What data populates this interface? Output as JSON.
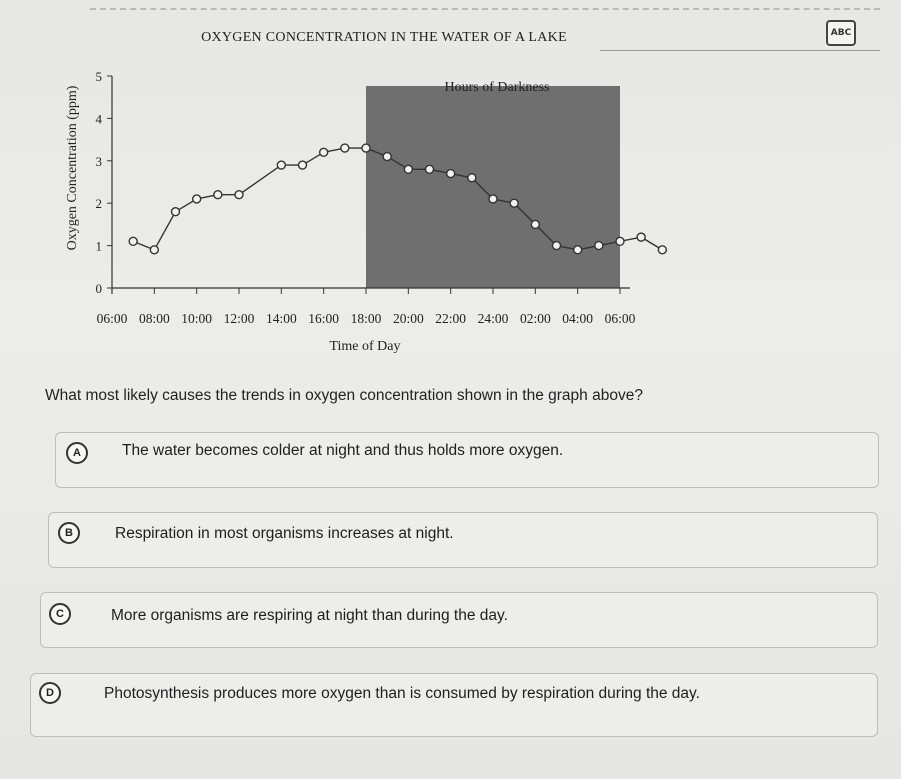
{
  "icons": {
    "abc": "abc-icon"
  },
  "abc_label": "ABC",
  "chart_data": {
    "type": "line",
    "title": "OXYGEN CONCENTRATION IN THE WATER OF A LAKE",
    "xlabel": "Time of Day",
    "ylabel": "Oxygen Concentration (ppm)",
    "shaded_label": "Hours of Darkness",
    "shaded_range": [
      "18:00",
      "06:00"
    ],
    "x_ticks": [
      "06:00",
      "08:00",
      "10:00",
      "12:00",
      "14:00",
      "16:00",
      "18:00",
      "20:00",
      "22:00",
      "24:00",
      "02:00",
      "04:00",
      "06:00"
    ],
    "y_ticks": [
      "0",
      "1",
      "2",
      "3",
      "4",
      "5"
    ],
    "ylim": [
      0,
      5
    ],
    "x_hours": [
      7,
      8,
      9,
      10,
      11,
      12,
      14,
      15,
      16,
      17,
      18,
      19,
      20,
      21,
      22,
      23,
      24,
      25,
      26,
      27,
      28,
      29,
      30,
      31,
      32
    ],
    "y": [
      1.1,
      0.9,
      1.8,
      2.1,
      2.2,
      2.2,
      2.9,
      2.9,
      3.2,
      3.3,
      3.3,
      3.1,
      2.8,
      2.8,
      2.7,
      2.6,
      2.1,
      2.0,
      1.5,
      1.0,
      0.9,
      1.0,
      1.1,
      1.2,
      0.9
    ]
  },
  "question": "What most likely causes the trends in oxygen concentration shown in the graph above?",
  "options": [
    {
      "letter": "A",
      "text": "The water becomes colder at night and thus holds more oxygen."
    },
    {
      "letter": "B",
      "text": "Respiration in most organisms increases at night."
    },
    {
      "letter": "C",
      "text": "More organisms are respiring at night than during the day."
    },
    {
      "letter": "D",
      "text": "Photosynthesis produces more oxygen than is consumed by respiration during the day."
    }
  ]
}
